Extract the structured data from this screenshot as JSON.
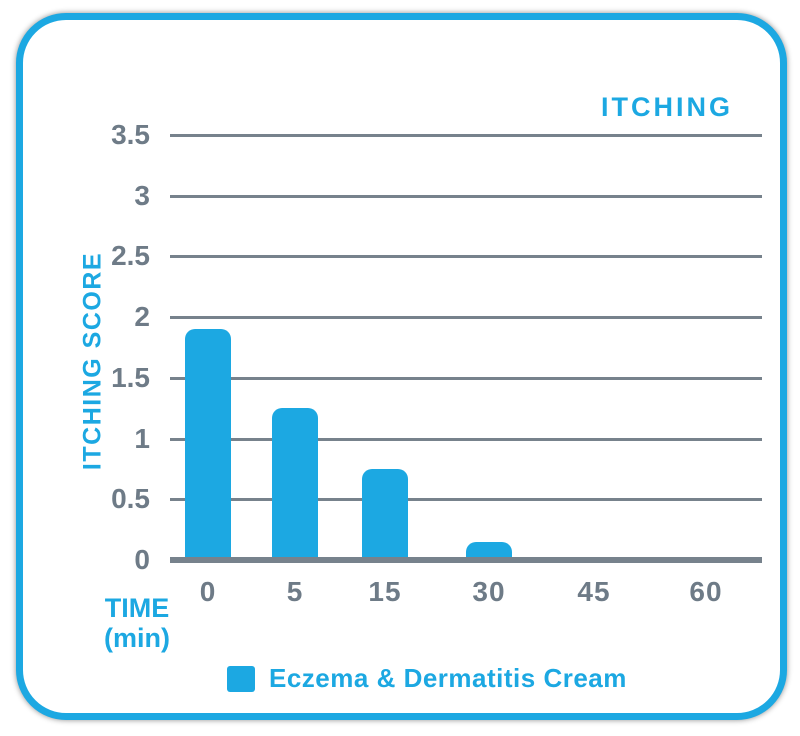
{
  "colors": {
    "accent_blue": "#1CA8E2",
    "axis_text_gray": "#6E7B87",
    "grid_gray": "#77828C",
    "card_background": "#FFFFFF"
  },
  "chart": {
    "title": "ITCHING",
    "y_axis_title": "ITCHING SCORE",
    "x_axis_title_line1": "TIME",
    "x_axis_title_line2": "(min)",
    "legend": {
      "swatch": "blue-square",
      "label": "Eczema & Dermatitis Cream"
    }
  },
  "chart_data": {
    "type": "bar",
    "title": "ITCHING",
    "xlabel": "TIME (min)",
    "ylabel": "ITCHING SCORE",
    "categories": [
      "0",
      "5",
      "15",
      "30",
      "45",
      "60"
    ],
    "series": [
      {
        "name": "Eczema & Dermatitis Cream",
        "values": [
          1.9,
          1.25,
          0.75,
          0.15,
          0,
          0
        ]
      }
    ],
    "ylim": [
      0,
      3.5
    ],
    "yticks": [
      {
        "value": 3.5,
        "label": "3.5"
      },
      {
        "value": 3,
        "label": "3"
      },
      {
        "value": 2.5,
        "label": "2.5"
      },
      {
        "value": 2,
        "label": "2"
      },
      {
        "value": 1.5,
        "label": "1.5"
      },
      {
        "value": 1,
        "label": "1"
      },
      {
        "value": 0.5,
        "label": "0.5"
      },
      {
        "value": 0,
        "label": "0"
      }
    ],
    "grid": true,
    "legend_position": "bottom",
    "bar_color": "#1CA8E2",
    "axis_color": "#77828C"
  }
}
